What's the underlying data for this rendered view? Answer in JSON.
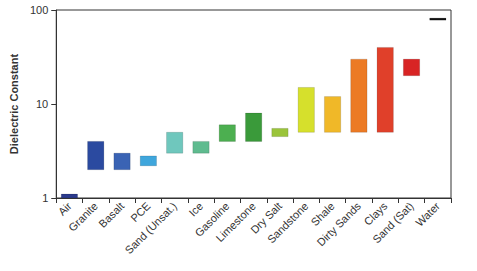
{
  "chart_data": {
    "type": "floating_bar",
    "y_label": "Dielectric Constant",
    "categories": [
      "Air",
      "Granite",
      "Basalt",
      "PCE",
      "Sand (Unsat.)",
      "Ice",
      "Gasoline",
      "Limestone",
      "Dry Salt",
      "Sandstone",
      "Shale",
      "Dirty Sands",
      "Clays",
      "Sand (Sat)",
      "Water"
    ],
    "low": [
      1,
      2,
      2,
      2.2,
      3,
      3,
      4,
      4,
      4.5,
      5,
      5,
      5,
      5,
      20,
      78
    ],
    "high": [
      1.1,
      4,
      3,
      2.8,
      5,
      4,
      6,
      8,
      5.5,
      15,
      12,
      30,
      40,
      30,
      82
    ],
    "colors": [
      "#2b3a8c",
      "#2b4aa0",
      "#3a63b4",
      "#3fa6dc",
      "#6fc7bd",
      "#5fbb8f",
      "#4caf50",
      "#3a9a3a",
      "#9ac43a",
      "#d6e02c",
      "#f0b828",
      "#ec7a24",
      "#e0402a",
      "#d82424",
      "#111111"
    ],
    "log": "y",
    "ylim": [
      1,
      100
    ],
    "yticks": [
      1,
      10,
      100
    ],
    "grid": false
  }
}
